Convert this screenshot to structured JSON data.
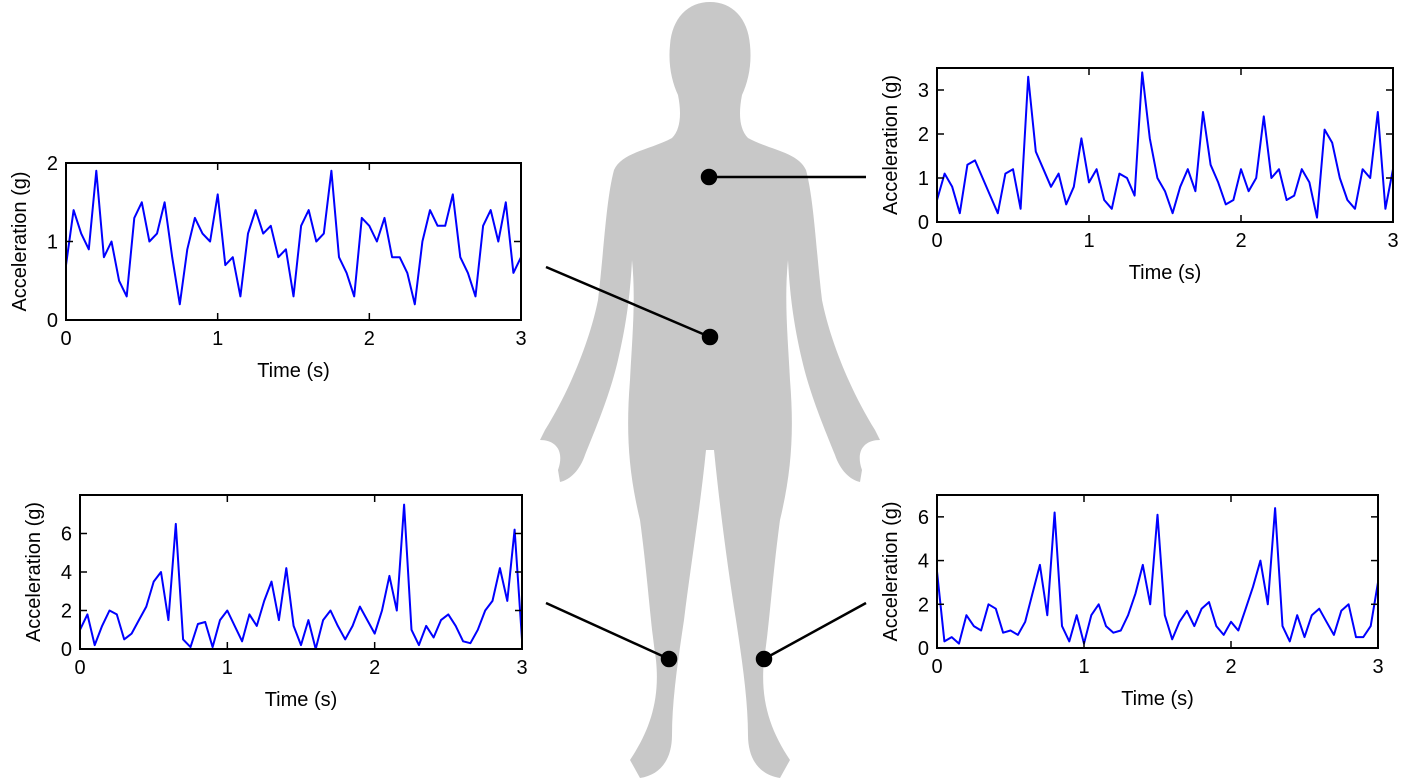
{
  "chart_data": [
    {
      "type": "line",
      "xlabel": "Time (s)",
      "ylabel": "Acceleration (g)",
      "color": "#0000ff",
      "xlim": [
        0,
        3
      ],
      "xticks": [
        0,
        1,
        2,
        3
      ],
      "ylim": [
        0,
        2
      ],
      "yticks": [
        0,
        1,
        2
      ],
      "x": [
        0,
        0.05,
        0.1,
        0.15,
        0.2,
        0.25,
        0.3,
        0.35,
        0.4,
        0.45,
        0.5,
        0.55,
        0.6,
        0.65,
        0.7,
        0.75,
        0.8,
        0.85,
        0.9,
        0.95,
        1,
        1.05,
        1.1,
        1.15,
        1.2,
        1.25,
        1.3,
        1.35,
        1.4,
        1.45,
        1.5,
        1.55,
        1.6,
        1.65,
        1.7,
        1.75,
        1.8,
        1.85,
        1.9,
        1.95,
        2,
        2.05,
        2.1,
        2.15,
        2.2,
        2.25,
        2.3,
        2.35,
        2.4,
        2.45,
        2.5,
        2.55,
        2.6,
        2.65,
        2.7,
        2.75,
        2.8,
        2.85,
        2.9,
        2.95,
        3
      ],
      "values": [
        0.7,
        1.4,
        1.1,
        0.9,
        1.9,
        0.8,
        1.0,
        0.5,
        0.3,
        1.3,
        1.5,
        1.0,
        1.1,
        1.5,
        0.8,
        0.2,
        0.9,
        1.3,
        1.1,
        1.0,
        1.6,
        0.7,
        0.8,
        0.3,
        1.1,
        1.4,
        1.1,
        1.2,
        0.8,
        0.9,
        0.3,
        1.2,
        1.4,
        1.0,
        1.1,
        1.9,
        0.8,
        0.6,
        0.3,
        1.3,
        1.2,
        1.0,
        1.3,
        0.8,
        0.8,
        0.6,
        0.2,
        1.0,
        1.4,
        1.2,
        1.2,
        1.6,
        0.8,
        0.6,
        0.3,
        1.2,
        1.4,
        1.0,
        1.5,
        0.6,
        0.8
      ]
    },
    {
      "type": "line",
      "xlabel": "Time (s)",
      "ylabel": "Acceleration (g)",
      "color": "#0000ff",
      "xlim": [
        0,
        3
      ],
      "xticks": [
        0,
        1,
        2,
        3
      ],
      "ylim": [
        0,
        3.5
      ],
      "yticks": [
        0,
        1,
        2,
        3
      ],
      "x": [
        0,
        0.05,
        0.1,
        0.15,
        0.2,
        0.25,
        0.3,
        0.35,
        0.4,
        0.45,
        0.5,
        0.55,
        0.6,
        0.65,
        0.7,
        0.75,
        0.8,
        0.85,
        0.9,
        0.95,
        1,
        1.05,
        1.1,
        1.15,
        1.2,
        1.25,
        1.3,
        1.35,
        1.4,
        1.45,
        1.5,
        1.55,
        1.6,
        1.65,
        1.7,
        1.75,
        1.8,
        1.85,
        1.9,
        1.95,
        2,
        2.05,
        2.1,
        2.15,
        2.2,
        2.25,
        2.3,
        2.35,
        2.4,
        2.45,
        2.5,
        2.55,
        2.6,
        2.65,
        2.7,
        2.75,
        2.8,
        2.85,
        2.9,
        2.95,
        3
      ],
      "values": [
        0.5,
        1.1,
        0.8,
        0.2,
        1.3,
        1.4,
        1.0,
        0.6,
        0.2,
        1.1,
        1.2,
        0.3,
        3.3,
        1.6,
        1.2,
        0.8,
        1.1,
        0.4,
        0.8,
        1.9,
        0.9,
        1.2,
        0.5,
        0.3,
        1.1,
        1.0,
        0.6,
        3.4,
        1.9,
        1.0,
        0.7,
        0.2,
        0.8,
        1.2,
        0.7,
        2.5,
        1.3,
        0.9,
        0.4,
        0.5,
        1.2,
        0.7,
        1.0,
        2.4,
        1.0,
        1.2,
        0.5,
        0.6,
        1.2,
        0.9,
        0.1,
        2.1,
        1.8,
        1.0,
        0.5,
        0.3,
        1.2,
        1.0,
        2.5,
        0.3,
        1.2
      ]
    },
    {
      "type": "line",
      "xlabel": "Time (s)",
      "ylabel": "Acceleration (g)",
      "color": "#0000ff",
      "xlim": [
        0,
        3
      ],
      "xticks": [
        0,
        1,
        2,
        3
      ],
      "ylim": [
        0,
        8
      ],
      "yticks": [
        0,
        2,
        4,
        6
      ],
      "x": [
        0,
        0.05,
        0.1,
        0.15,
        0.2,
        0.25,
        0.3,
        0.35,
        0.4,
        0.45,
        0.5,
        0.55,
        0.6,
        0.65,
        0.7,
        0.75,
        0.8,
        0.85,
        0.9,
        0.95,
        1,
        1.05,
        1.1,
        1.15,
        1.2,
        1.25,
        1.3,
        1.35,
        1.4,
        1.45,
        1.5,
        1.55,
        1.6,
        1.65,
        1.7,
        1.75,
        1.8,
        1.85,
        1.9,
        1.95,
        2,
        2.05,
        2.1,
        2.15,
        2.2,
        2.25,
        2.3,
        2.35,
        2.4,
        2.45,
        2.5,
        2.55,
        2.6,
        2.65,
        2.7,
        2.75,
        2.8,
        2.85,
        2.9,
        2.95,
        3
      ],
      "values": [
        1.0,
        1.8,
        0.2,
        1.2,
        2.0,
        1.8,
        0.5,
        0.8,
        1.5,
        2.2,
        3.5,
        4.0,
        1.5,
        6.5,
        0.5,
        0.1,
        1.3,
        1.4,
        0.1,
        1.5,
        2.0,
        1.2,
        0.4,
        1.8,
        1.2,
        2.5,
        3.5,
        1.5,
        4.2,
        1.2,
        0.2,
        1.5,
        0.0,
        1.5,
        2.0,
        1.2,
        0.5,
        1.2,
        2.2,
        1.5,
        0.8,
        2.0,
        3.8,
        2.0,
        7.5,
        1.0,
        0.2,
        1.2,
        0.6,
        1.5,
        1.8,
        1.2,
        0.4,
        0.3,
        1.0,
        2.0,
        2.5,
        4.2,
        2.5,
        6.2,
        0.5
      ]
    },
    {
      "type": "line",
      "xlabel": "Time (s)",
      "ylabel": "Acceleration (g)",
      "color": "#0000ff",
      "xlim": [
        0,
        3
      ],
      "xticks": [
        0,
        1,
        2,
        3
      ],
      "ylim": [
        0,
        7
      ],
      "yticks": [
        0,
        2,
        4,
        6
      ],
      "x": [
        0,
        0.05,
        0.1,
        0.15,
        0.2,
        0.25,
        0.3,
        0.35,
        0.4,
        0.45,
        0.5,
        0.55,
        0.6,
        0.65,
        0.7,
        0.75,
        0.8,
        0.85,
        0.9,
        0.95,
        1,
        1.05,
        1.1,
        1.15,
        1.2,
        1.25,
        1.3,
        1.35,
        1.4,
        1.45,
        1.5,
        1.55,
        1.6,
        1.65,
        1.7,
        1.75,
        1.8,
        1.85,
        1.9,
        1.95,
        2,
        2.05,
        2.1,
        2.15,
        2.2,
        2.25,
        2.3,
        2.35,
        2.4,
        2.45,
        2.5,
        2.55,
        2.6,
        2.65,
        2.7,
        2.75,
        2.8,
        2.85,
        2.9,
        2.95,
        3
      ],
      "values": [
        3.5,
        0.3,
        0.5,
        0.2,
        1.5,
        1.0,
        0.8,
        2.0,
        1.8,
        0.7,
        0.8,
        0.6,
        1.2,
        2.5,
        3.8,
        1.5,
        6.2,
        1.0,
        0.3,
        1.5,
        0.2,
        1.5,
        2.0,
        1.0,
        0.7,
        0.8,
        1.5,
        2.5,
        3.8,
        2.0,
        6.1,
        1.5,
        0.4,
        1.2,
        1.7,
        1.0,
        1.8,
        2.1,
        1.0,
        0.6,
        1.2,
        0.8,
        1.8,
        2.8,
        4.0,
        2.0,
        6.4,
        1.0,
        0.3,
        1.5,
        0.5,
        1.5,
        1.8,
        1.2,
        0.6,
        1.7,
        2.0,
        0.5,
        0.5,
        1.0,
        3.0
      ]
    }
  ]
}
